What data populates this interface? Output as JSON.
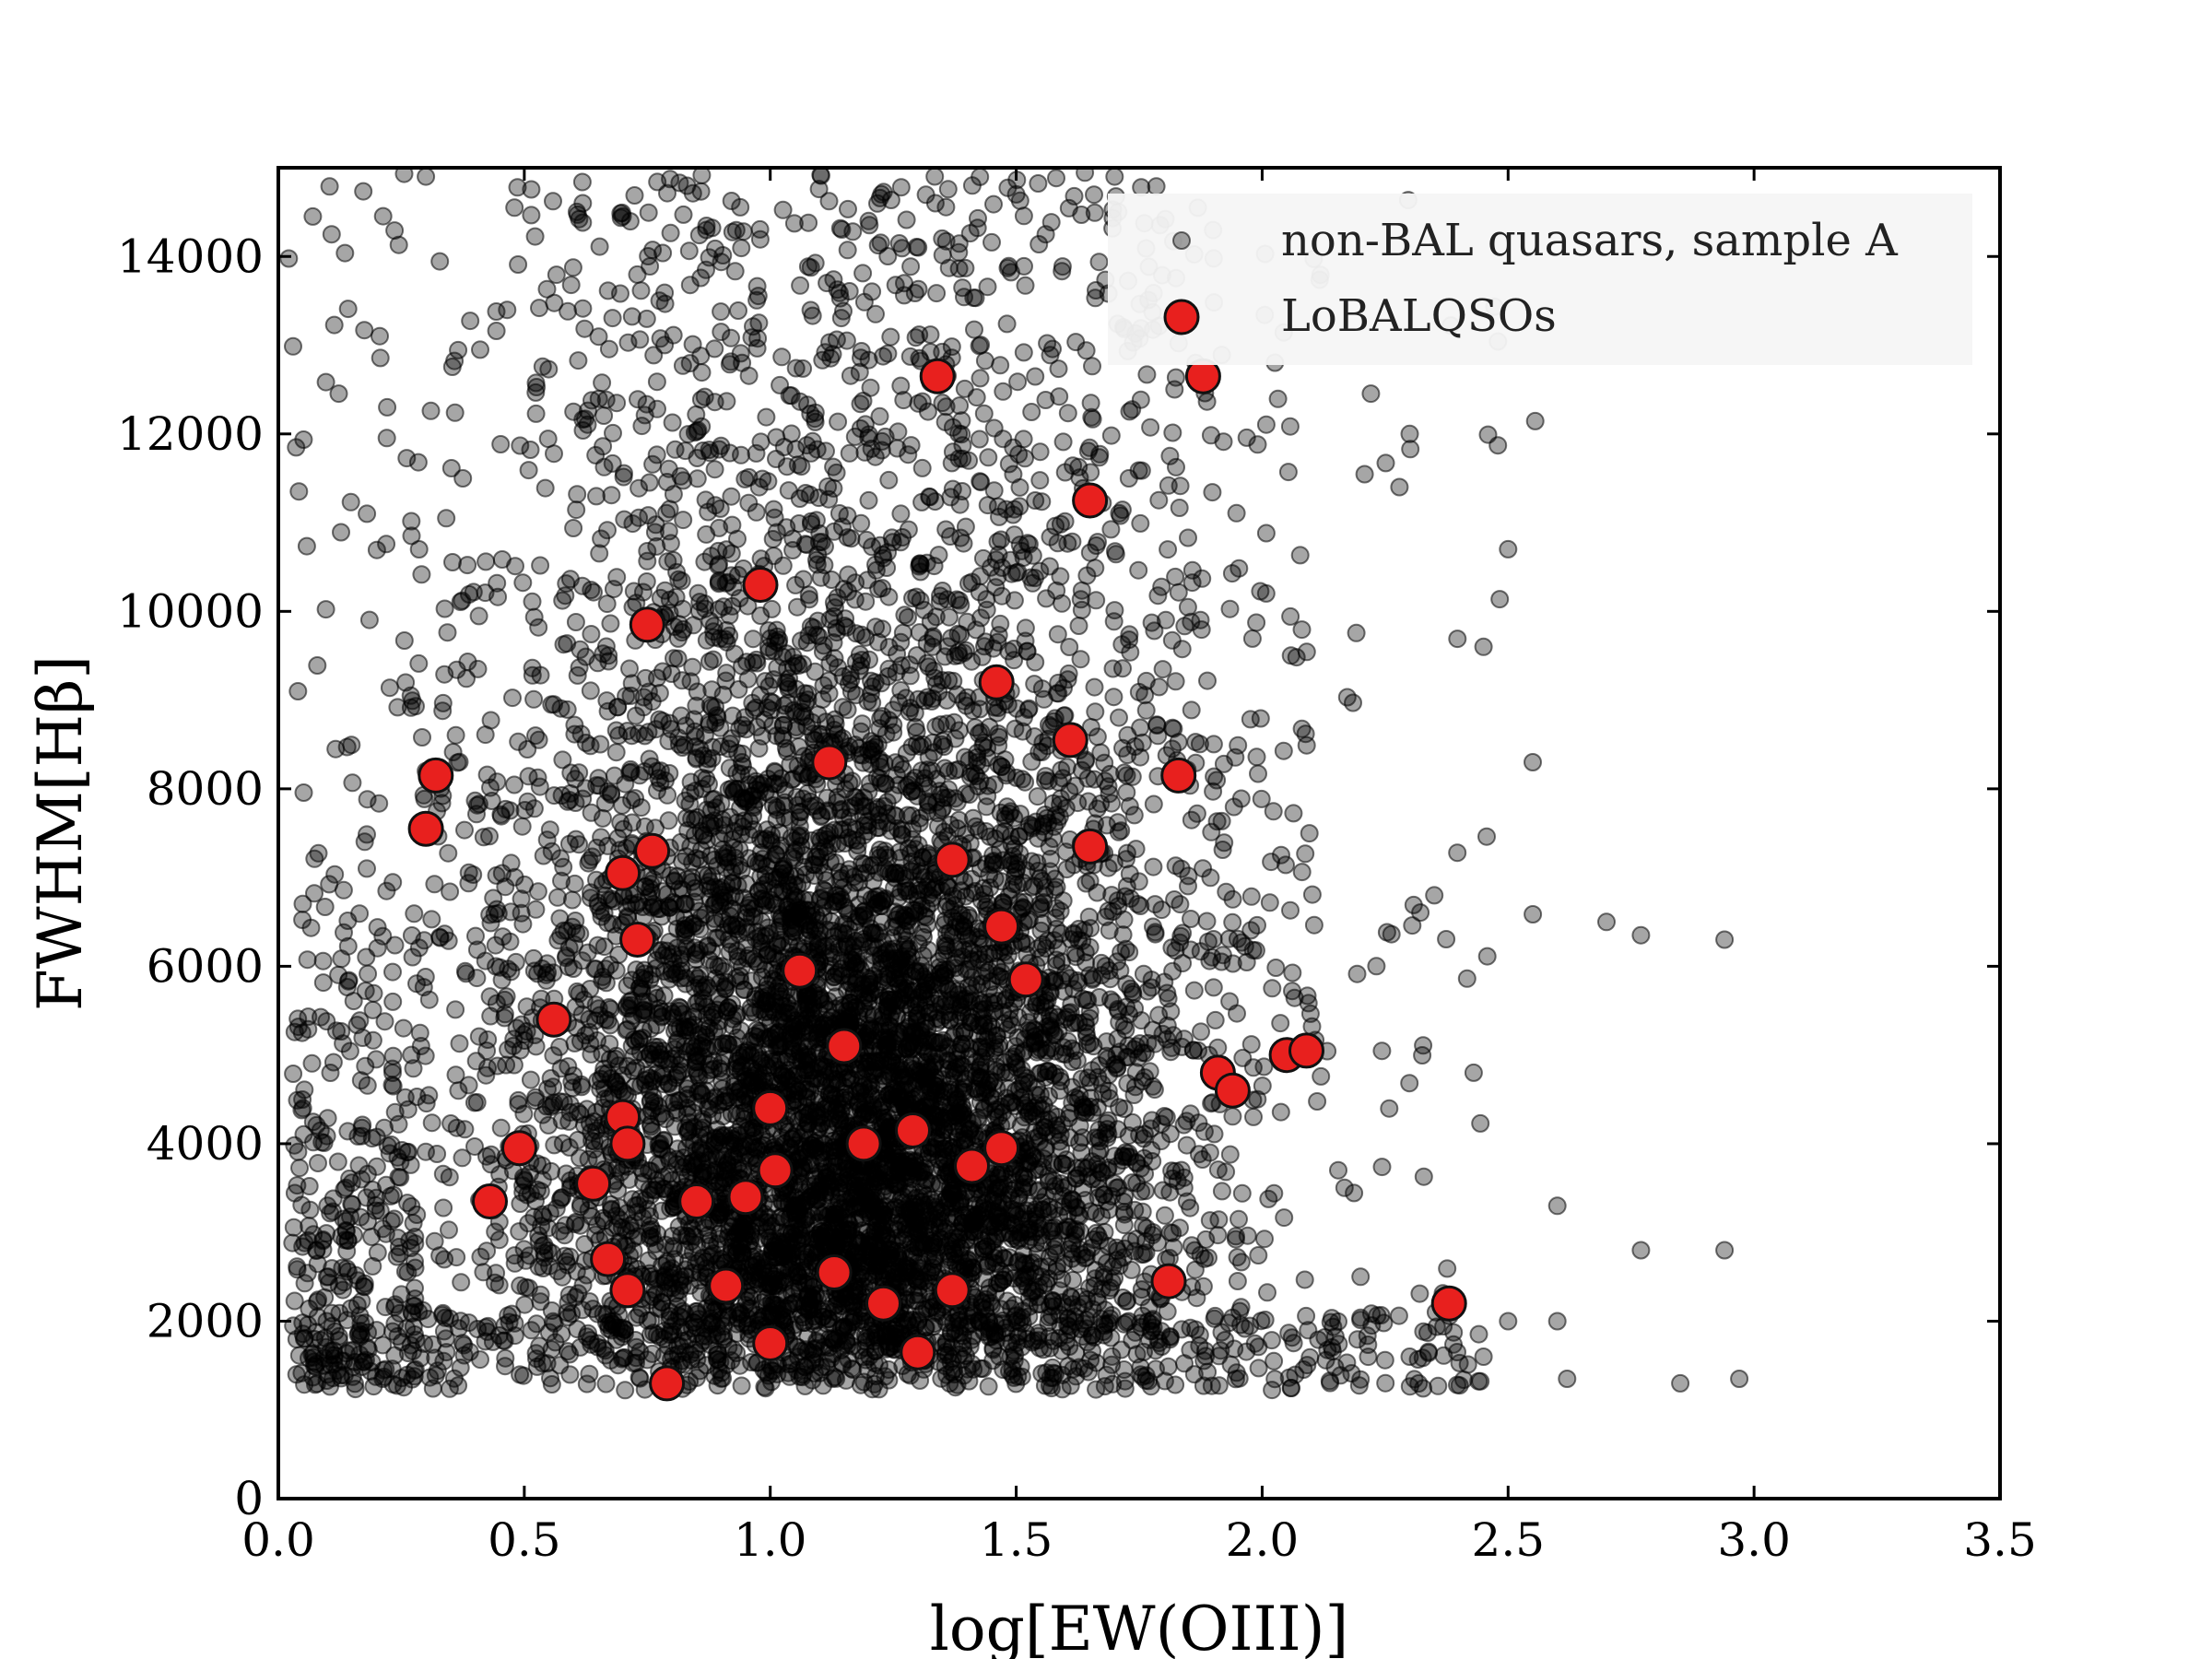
{
  "chart_data": {
    "type": "scatter",
    "xlabel": "log[EW(OIII)]",
    "ylabel": "FWHM[Hβ]",
    "xlim": [
      0.0,
      3.5
    ],
    "ylim": [
      0,
      15000
    ],
    "xticks": [
      "0.0",
      "0.5",
      "1.0",
      "1.5",
      "2.0",
      "2.5",
      "3.0",
      "3.5"
    ],
    "yticks": [
      "0",
      "2000",
      "4000",
      "6000",
      "8000",
      "10000",
      "12000",
      "14000"
    ],
    "grid": false,
    "legend_position": "top-right",
    "series": [
      {
        "name": "non-BAL quasars, sample A",
        "color": "#000000",
        "opacity": 0.35,
        "marker": "small-circle",
        "distribution_note": "dense cloud of several thousand points",
        "points_sample": [
          [
            0.04,
            9100
          ],
          [
            0.07,
            14450
          ],
          [
            0.18,
            11100
          ],
          [
            0.3,
            14900
          ],
          [
            0.48,
            14550
          ],
          [
            0.3,
            8200
          ],
          [
            0.13,
            2600
          ],
          [
            0.05,
            4400
          ],
          [
            0.1,
            3300
          ],
          [
            0.2,
            1900
          ],
          [
            0.6,
            12250
          ],
          [
            0.9,
            13150
          ],
          [
            1.2,
            14400
          ],
          [
            1.5,
            14700
          ],
          [
            1.7,
            14900
          ],
          [
            2.3,
            12000
          ],
          [
            2.5,
            10700
          ],
          [
            2.45,
            9600
          ],
          [
            2.55,
            8300
          ],
          [
            2.35,
            6800
          ],
          [
            2.6,
            3300
          ],
          [
            2.7,
            6500
          ],
          [
            2.77,
            6350
          ],
          [
            2.94,
            6300
          ],
          [
            2.94,
            2800
          ],
          [
            2.77,
            2800
          ],
          [
            2.85,
            1300
          ],
          [
            2.97,
            1350
          ],
          [
            2.62,
            1350
          ],
          [
            2.5,
            2000
          ],
          [
            2.45,
            1600
          ],
          [
            2.3,
            1600
          ],
          [
            2.2,
            2500
          ],
          [
            2.43,
            4800
          ],
          [
            2.6,
            2000
          ]
        ]
      },
      {
        "name": "LoBALQSOs",
        "color": "#e8201e",
        "edgecolor": "#111111",
        "marker": "large-circle",
        "x": [
          0.3,
          0.32,
          0.43,
          0.49,
          0.56,
          0.64,
          0.67,
          0.7,
          0.7,
          0.71,
          0.71,
          0.73,
          0.75,
          0.76,
          0.79,
          0.85,
          0.91,
          0.95,
          0.98,
          1.0,
          1.0,
          1.01,
          1.06,
          1.12,
          1.13,
          1.15,
          1.19,
          1.23,
          1.29,
          1.3,
          1.34,
          1.37,
          1.37,
          1.41,
          1.46,
          1.47,
          1.47,
          1.52,
          1.61,
          1.65,
          1.65,
          1.81,
          1.83,
          1.88,
          1.91,
          1.94,
          2.05,
          2.09,
          2.38
        ],
        "y": [
          7550,
          8150,
          3350,
          3950,
          5400,
          3550,
          2700,
          4300,
          7050,
          2350,
          4000,
          6300,
          9850,
          7300,
          1300,
          3350,
          2400,
          3400,
          10300,
          4400,
          1750,
          3700,
          5950,
          8300,
          2550,
          5100,
          4000,
          2200,
          4150,
          1650,
          12650,
          7200,
          2350,
          3750,
          9200,
          3950,
          6450,
          5850,
          8550,
          11250,
          7350,
          2450,
          8150,
          12650,
          4800,
          4600,
          5000,
          5050,
          2200
        ]
      }
    ]
  }
}
